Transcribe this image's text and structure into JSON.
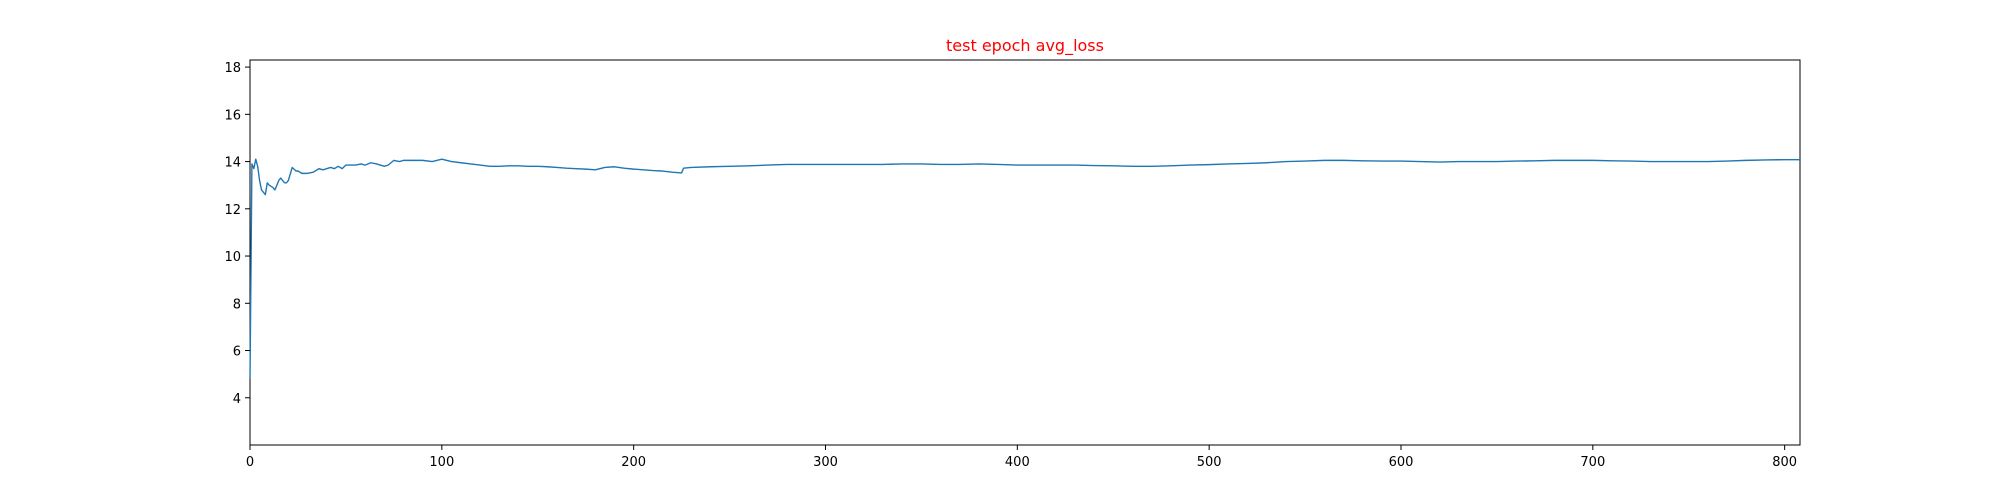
{
  "chart_data": {
    "type": "line",
    "title": "test epoch avg_loss",
    "xlabel": "",
    "ylabel": "",
    "xlim": [
      0,
      808
    ],
    "ylim": [
      2,
      18.3
    ],
    "grid": false,
    "line_color": "#1f77b4",
    "title_color": "#ff0000",
    "x_ticks": [
      0,
      100,
      200,
      300,
      400,
      500,
      600,
      700,
      800
    ],
    "y_ticks": [
      4,
      6,
      8,
      10,
      12,
      14,
      16,
      18
    ],
    "x_tick_labels": [
      "0",
      "100",
      "200",
      "300",
      "400",
      "500",
      "600",
      "700",
      "800"
    ],
    "y_tick_labels": [
      "4",
      "6",
      "8",
      "10",
      "12",
      "14",
      "16",
      "18"
    ],
    "series": [
      {
        "x": [
          0,
          1,
          2,
          3,
          4,
          5,
          6,
          8,
          9,
          10,
          12,
          13,
          15,
          16,
          18,
          19,
          20,
          22,
          24,
          25,
          27,
          28,
          30,
          33,
          36,
          38,
          40,
          42,
          44,
          46,
          48,
          50,
          52,
          55,
          58,
          60,
          63,
          66,
          70,
          72,
          75,
          78,
          80,
          85,
          90,
          95,
          100,
          105,
          110,
          115,
          120,
          125,
          130,
          135,
          140,
          145,
          150,
          155,
          160,
          165,
          170,
          175,
          180,
          185,
          190,
          195,
          200,
          205,
          210,
          215,
          220,
          225,
          226,
          230,
          240,
          250,
          260,
          270,
          280,
          290,
          300,
          310,
          320,
          330,
          340,
          350,
          360,
          370,
          380,
          390,
          400,
          410,
          420,
          430,
          440,
          450,
          460,
          470,
          480,
          490,
          500,
          510,
          520,
          530,
          540,
          550,
          560,
          570,
          580,
          590,
          600,
          610,
          620,
          630,
          640,
          650,
          660,
          670,
          680,
          690,
          700,
          710,
          720,
          730,
          740,
          750,
          760,
          770,
          780,
          790,
          800,
          808
        ],
        "y": [
          4.8,
          13.9,
          13.7,
          14.1,
          13.8,
          13.2,
          12.8,
          12.6,
          13.1,
          13.0,
          12.9,
          12.8,
          13.2,
          13.3,
          13.1,
          13.1,
          13.2,
          13.75,
          13.6,
          13.6,
          13.5,
          13.5,
          13.5,
          13.55,
          13.7,
          13.65,
          13.7,
          13.75,
          13.7,
          13.8,
          13.7,
          13.85,
          13.85,
          13.85,
          13.9,
          13.85,
          13.95,
          13.9,
          13.8,
          13.85,
          14.05,
          14.0,
          14.05,
          14.05,
          14.05,
          14.0,
          14.1,
          14.0,
          13.95,
          13.9,
          13.85,
          13.8,
          13.8,
          13.82,
          13.82,
          13.8,
          13.8,
          13.78,
          13.75,
          13.72,
          13.7,
          13.68,
          13.65,
          13.75,
          13.78,
          13.72,
          13.68,
          13.65,
          13.62,
          13.6,
          13.55,
          13.52,
          13.72,
          13.75,
          13.78,
          13.8,
          13.82,
          13.85,
          13.88,
          13.88,
          13.88,
          13.88,
          13.88,
          13.88,
          13.9,
          13.9,
          13.88,
          13.88,
          13.9,
          13.88,
          13.85,
          13.85,
          13.85,
          13.85,
          13.83,
          13.82,
          13.8,
          13.8,
          13.82,
          13.85,
          13.87,
          13.9,
          13.92,
          13.95,
          14.0,
          14.02,
          14.05,
          14.05,
          14.03,
          14.02,
          14.02,
          14.0,
          13.98,
          14.0,
          14.0,
          14.0,
          14.02,
          14.03,
          14.05,
          14.05,
          14.05,
          14.03,
          14.02,
          14.0,
          14.0,
          14.0,
          14.0,
          14.02,
          14.05,
          14.07,
          14.08,
          14.08
        ]
      }
    ]
  }
}
